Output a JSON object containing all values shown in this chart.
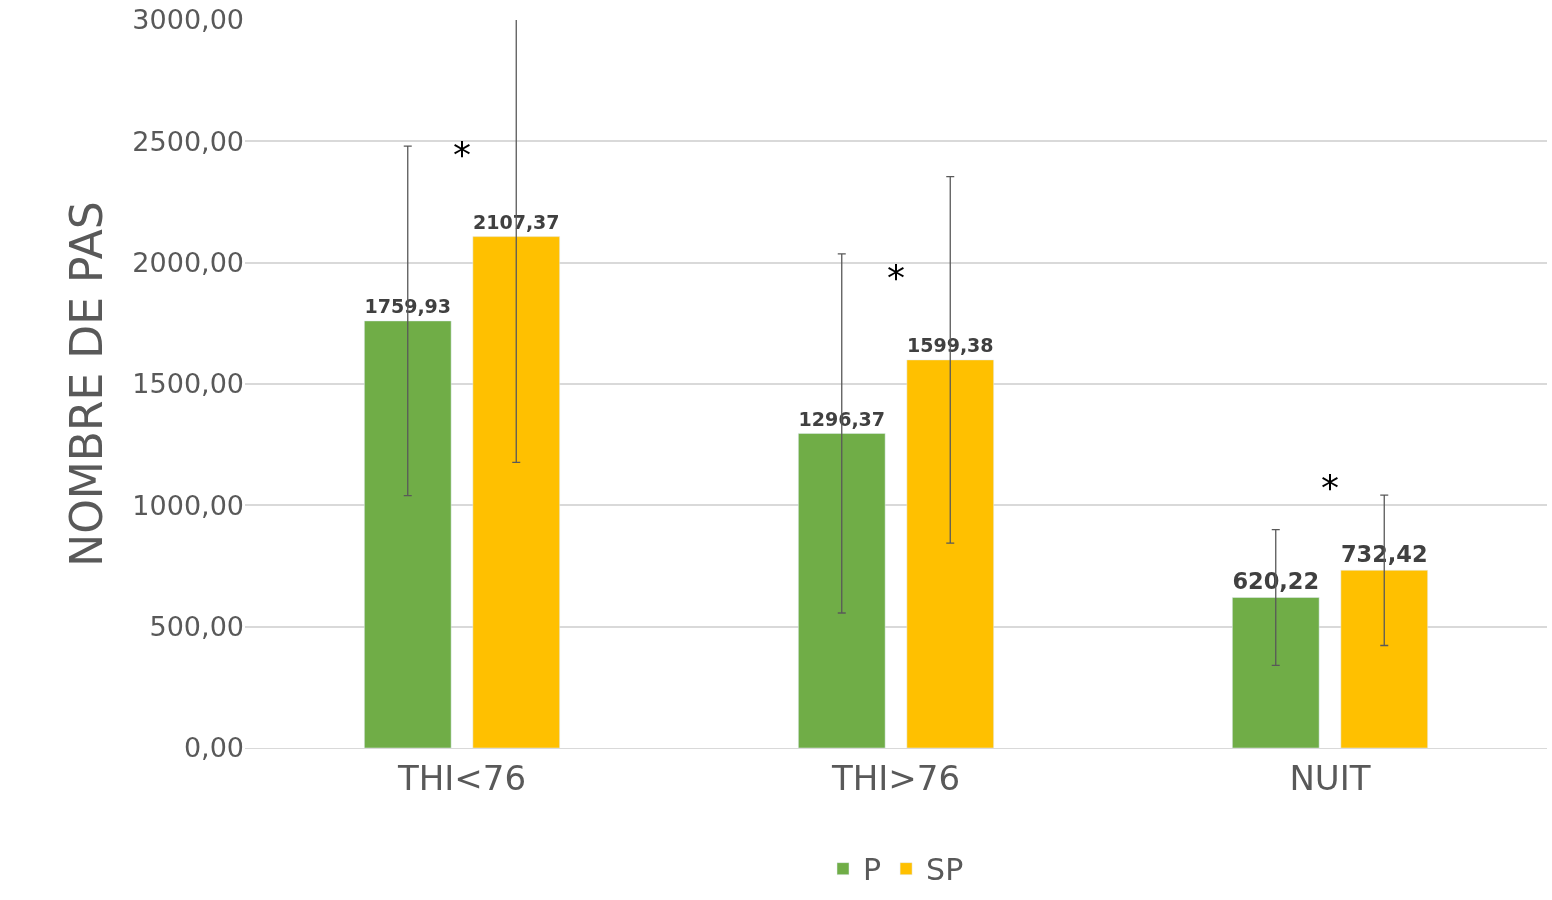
{
  "chart_data": {
    "type": "bar",
    "ylabel": "NOMBRE DE PAS",
    "categories": [
      "THI<76",
      "THI>76",
      "NUIT"
    ],
    "series": [
      {
        "name": "P",
        "color": "#70ad47",
        "values": [
          1759.93,
          1296.37,
          620.22
        ],
        "errors": [
          720,
          740,
          280
        ],
        "value_labels": [
          "1759,93",
          "1296,37",
          "620,22"
        ]
      },
      {
        "name": "SP",
        "color": "#ffc000",
        "values": [
          2107.37,
          1599.38,
          732.42
        ],
        "errors": [
          930,
          755,
          310
        ],
        "value_labels": [
          "2107,37",
          "1599,38",
          "732,42"
        ]
      }
    ],
    "ylim": [
      0,
      3000
    ],
    "yticks": [
      {
        "value": 0,
        "label": "0,00"
      },
      {
        "value": 500,
        "label": "500,00"
      },
      {
        "value": 1000,
        "label": "1000,00"
      },
      {
        "value": 1500,
        "label": "1500,00"
      },
      {
        "value": 2000,
        "label": "2000,00"
      },
      {
        "value": 2500,
        "label": "2500,00"
      },
      {
        "value": 3000,
        "label": "3000,00"
      }
    ],
    "annotations": [
      "*",
      "*",
      "*"
    ],
    "grid": "y",
    "legend": "bottom"
  }
}
